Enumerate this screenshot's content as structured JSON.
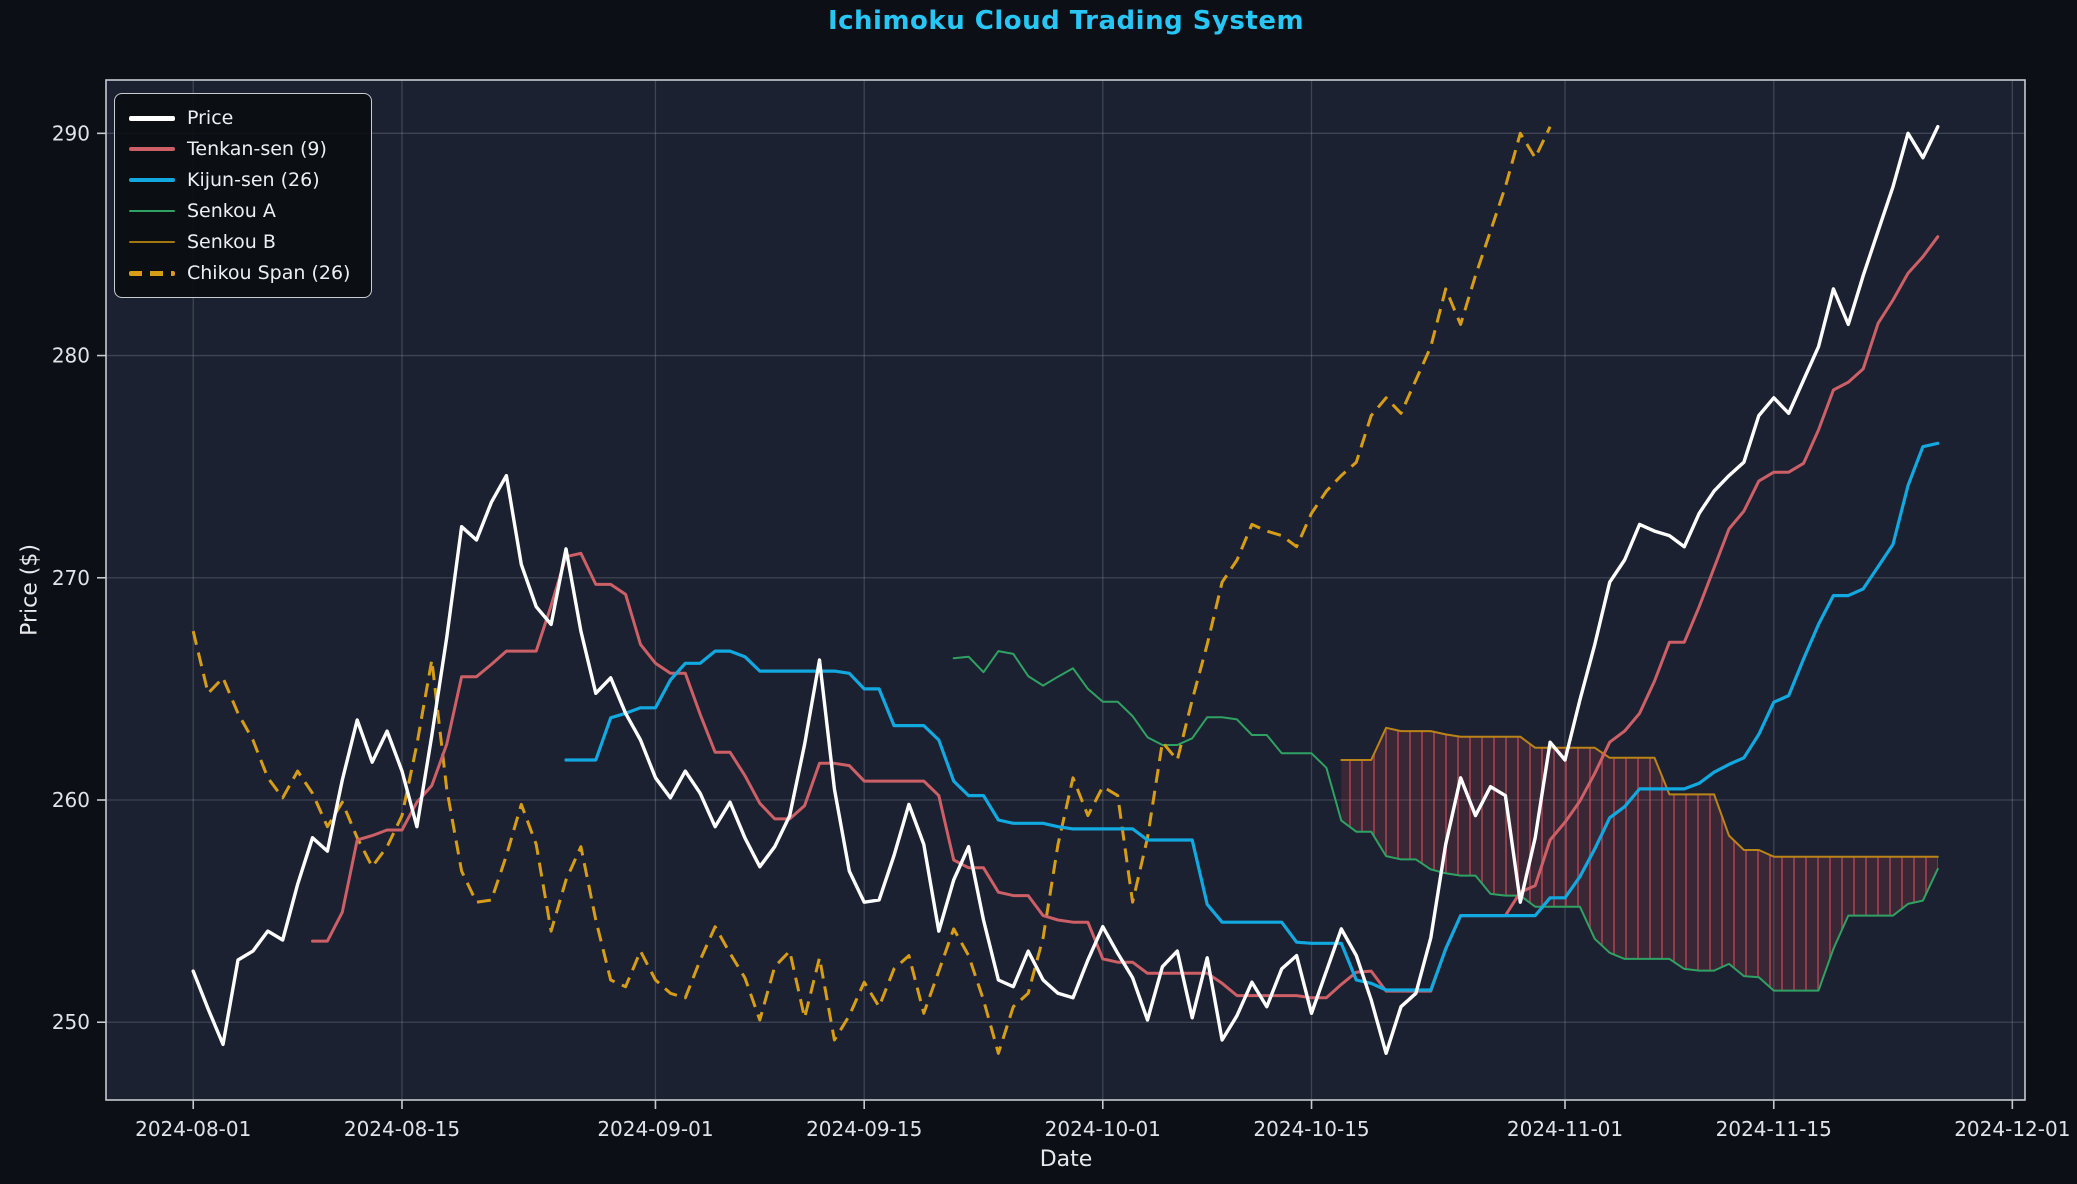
{
  "chart_data": {
    "type": "line",
    "title": "Ichimoku Cloud Trading System",
    "xlabel": "Date",
    "ylabel": "Price ($)",
    "x_start_date": "2024-08-01",
    "x_freq": "daily",
    "n_points": 118,
    "close": [
      252.3,
      250.6,
      249.0,
      252.8,
      253.2,
      254.1,
      253.7,
      256.2,
      258.3,
      257.7,
      260.9,
      263.6,
      261.7,
      263.1,
      261.3,
      258.8,
      262.9,
      267.3,
      272.3,
      271.7,
      273.4,
      274.6,
      270.6,
      268.7,
      267.9,
      271.3,
      267.6,
      264.8,
      265.5,
      263.9,
      262.7,
      261.0,
      260.1,
      261.3,
      260.3,
      258.8,
      259.9,
      258.3,
      257.0,
      257.9,
      259.3,
      262.5,
      266.3,
      260.5,
      256.8,
      255.4,
      255.5,
      257.5,
      259.8,
      258.0,
      254.1,
      256.4,
      257.9,
      254.6,
      251.9,
      251.6,
      253.2,
      251.9,
      251.3,
      251.1,
      252.8,
      254.3,
      253.1,
      252.0,
      250.1,
      252.5,
      253.2,
      250.2,
      252.9,
      249.2,
      250.3,
      251.8,
      250.7,
      252.4,
      253.0,
      250.4,
      252.3,
      254.2,
      253.0,
      251.0,
      248.6,
      250.7,
      251.3,
      253.8,
      258.0,
      261.0,
      259.3,
      260.6,
      260.2,
      255.4,
      258.3,
      262.6,
      261.8,
      264.5,
      267.0,
      269.8,
      270.8,
      272.4,
      272.1,
      271.9,
      271.4,
      272.9,
      273.9,
      274.6,
      275.2,
      277.3,
      278.1,
      277.4,
      278.9,
      280.4,
      283.0,
      281.4,
      283.6,
      285.6,
      287.6,
      290.0,
      288.9,
      290.3
    ],
    "series": [
      {
        "name": "Price",
        "kind": "close",
        "color": "#ffffff",
        "width": 3.4
      },
      {
        "name": "Tenkan-sen (9)",
        "kind": "tenkan",
        "period": 9,
        "color": "#cd5f66",
        "width": 3
      },
      {
        "name": "Kijun-sen (26)",
        "kind": "kijun",
        "period": 26,
        "color": "#12a8e0",
        "width": 3.2
      },
      {
        "name": "Senkou A",
        "kind": "senkou_a",
        "displacement": 26,
        "color": "#2fa263",
        "width": 2
      },
      {
        "name": "Senkou B",
        "kind": "senkou_b",
        "period": 52,
        "displacement": 26,
        "color": "#bb8418",
        "width": 2
      },
      {
        "name": "Chikou Span (26)",
        "kind": "chikou",
        "displacement": 26,
        "color": "#d79d17",
        "width": 3,
        "dash": [
          14,
          8
        ]
      }
    ],
    "cloud": {
      "type": "bearish",
      "fill": "#c7424e",
      "fill_opacity": 0.18,
      "hatch": "vertical",
      "hatch_color": "#d2505c"
    },
    "ylim": [
      246.5,
      292.4
    ],
    "yticks": [
      {
        "v": 250,
        "label": "250"
      },
      {
        "v": 260,
        "label": "260"
      },
      {
        "v": 270,
        "label": "270"
      },
      {
        "v": 280,
        "label": "280"
      },
      {
        "v": 290,
        "label": "290"
      }
    ],
    "xticks": [
      {
        "day": 0,
        "label": "2024-08-01"
      },
      {
        "day": 14,
        "label": "2024-08-15"
      },
      {
        "day": 31,
        "label": "2024-09-01"
      },
      {
        "day": 45,
        "label": "2024-09-15"
      },
      {
        "day": 61,
        "label": "2024-10-01"
      },
      {
        "day": 75,
        "label": "2024-10-15"
      },
      {
        "day": 92,
        "label": "2024-11-01"
      },
      {
        "day": 106,
        "label": "2024-11-15"
      },
      {
        "day": 122,
        "label": "2024-12-01"
      }
    ],
    "grid": true,
    "legend_position": "upper left",
    "colors": {
      "figure_bg": "#0c1016",
      "axes_bg": "#1b2130",
      "grid": "#98a2b0",
      "spine": "#c6cacf",
      "tick_text": "#e0e3e8",
      "title": "#27c6f5"
    }
  }
}
